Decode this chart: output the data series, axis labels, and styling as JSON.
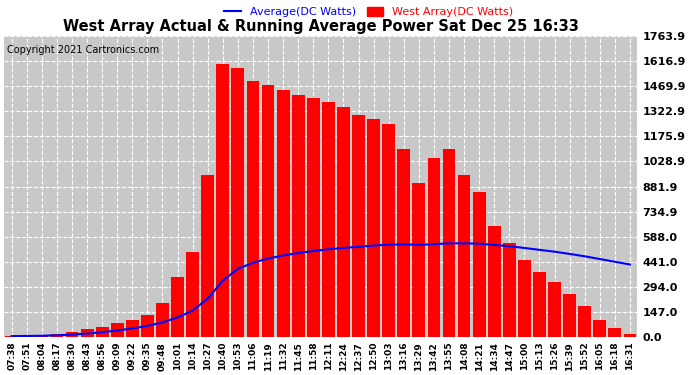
{
  "title": "West Array Actual & Running Average Power Sat Dec 25 16:33",
  "copyright": "Copyright 2021 Cartronics.com",
  "legend_avg": "Average(DC Watts)",
  "legend_west": "West Array(DC Watts)",
  "ylabel_values": [
    0.0,
    147.0,
    294.0,
    441.0,
    588.0,
    734.9,
    881.9,
    1028.9,
    1175.9,
    1322.9,
    1469.9,
    1616.9,
    1763.9
  ],
  "ymax": 1763.9,
  "ymin": 0.0,
  "bg_color": "#ffffff",
  "plot_bg_color": "#c8c8c8",
  "grid_color": "#ffffff",
  "bar_color": "#ff0000",
  "avg_color": "#0000ff",
  "title_color": "#000000",
  "copyright_color": "#000000",
  "legend_avg_color": "#0000ff",
  "legend_west_color": "#ff0000",
  "x_labels": [
    "07:38",
    "07:51",
    "08:04",
    "08:17",
    "08:30",
    "08:43",
    "08:56",
    "09:09",
    "09:22",
    "09:35",
    "09:48",
    "10:01",
    "10:14",
    "10:27",
    "10:40",
    "10:53",
    "11:06",
    "11:19",
    "11:32",
    "11:45",
    "11:58",
    "12:11",
    "12:24",
    "12:37",
    "12:50",
    "13:03",
    "13:16",
    "13:29",
    "13:42",
    "13:55",
    "14:08",
    "14:21",
    "14:34",
    "14:47",
    "15:00",
    "15:13",
    "15:26",
    "15:39",
    "15:52",
    "16:05",
    "16:18",
    "16:31"
  ],
  "west_bars": [
    5,
    8,
    12,
    20,
    30,
    45,
    60,
    80,
    100,
    130,
    200,
    350,
    500,
    950,
    1600,
    1580,
    1500,
    1480,
    1450,
    1420,
    1400,
    1380,
    1350,
    1300,
    1280,
    1250,
    1100,
    900,
    1050,
    1100,
    950,
    850,
    650,
    550,
    450,
    380,
    320,
    250,
    180,
    100,
    50,
    15
  ],
  "avg_line": [
    5,
    6,
    7,
    10,
    14,
    20,
    28,
    38,
    50,
    65,
    85,
    115,
    155,
    225,
    330,
    400,
    435,
    460,
    478,
    492,
    504,
    514,
    522,
    529,
    536,
    541,
    543,
    540,
    544,
    549,
    549,
    547,
    540,
    532,
    522,
    511,
    500,
    487,
    473,
    457,
    441,
    425
  ]
}
